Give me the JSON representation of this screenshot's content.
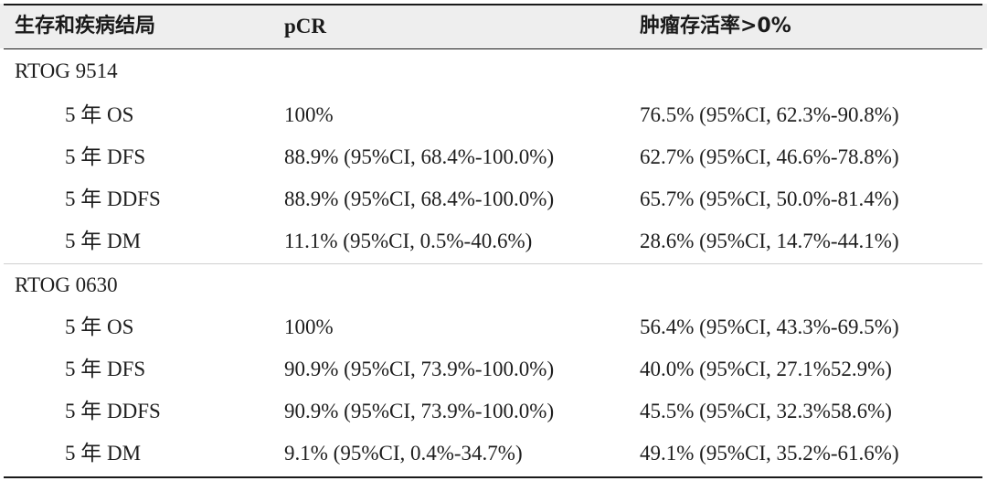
{
  "header": {
    "col1": "生存和疾病结局",
    "col2": "pCR",
    "col3": "肿瘤存活率>0%"
  },
  "groups": [
    {
      "label": "RTOG 9514",
      "rows": [
        {
          "outcome": "5 年 OS",
          "pcr": "100%",
          "viable": "76.5% (95%CI, 62.3%-90.8%)"
        },
        {
          "outcome": "5 年 DFS",
          "pcr": "88.9% (95%CI, 68.4%-100.0%)",
          "viable": "62.7% (95%CI, 46.6%-78.8%)"
        },
        {
          "outcome": "5 年 DDFS",
          "pcr": "88.9% (95%CI, 68.4%-100.0%)",
          "viable": "65.7% (95%CI, 50.0%-81.4%)"
        },
        {
          "outcome": "5 年 DM",
          "pcr": "11.1% (95%CI, 0.5%-40.6%)",
          "viable": "28.6% (95%CI, 14.7%-44.1%)"
        }
      ]
    },
    {
      "label": "RTOG 0630",
      "rows": [
        {
          "outcome": "5 年 OS",
          "pcr": "100%",
          "viable": "56.4% (95%CI, 43.3%-69.5%)"
        },
        {
          "outcome": "5 年 DFS",
          "pcr": "90.9% (95%CI, 73.9%-100.0%)",
          "viable": "40.0% (95%CI, 27.1%52.9%)"
        },
        {
          "outcome": "5 年 DDFS",
          "pcr": "90.9% (95%CI, 73.9%-100.0%)",
          "viable": "45.5% (95%CI, 32.3%58.6%)"
        },
        {
          "outcome": "5 年 DM",
          "pcr": "9.1% (95%CI, 0.4%-34.7%)",
          "viable": "49.1% (95%CI, 35.2%-61.6%)"
        }
      ]
    }
  ]
}
